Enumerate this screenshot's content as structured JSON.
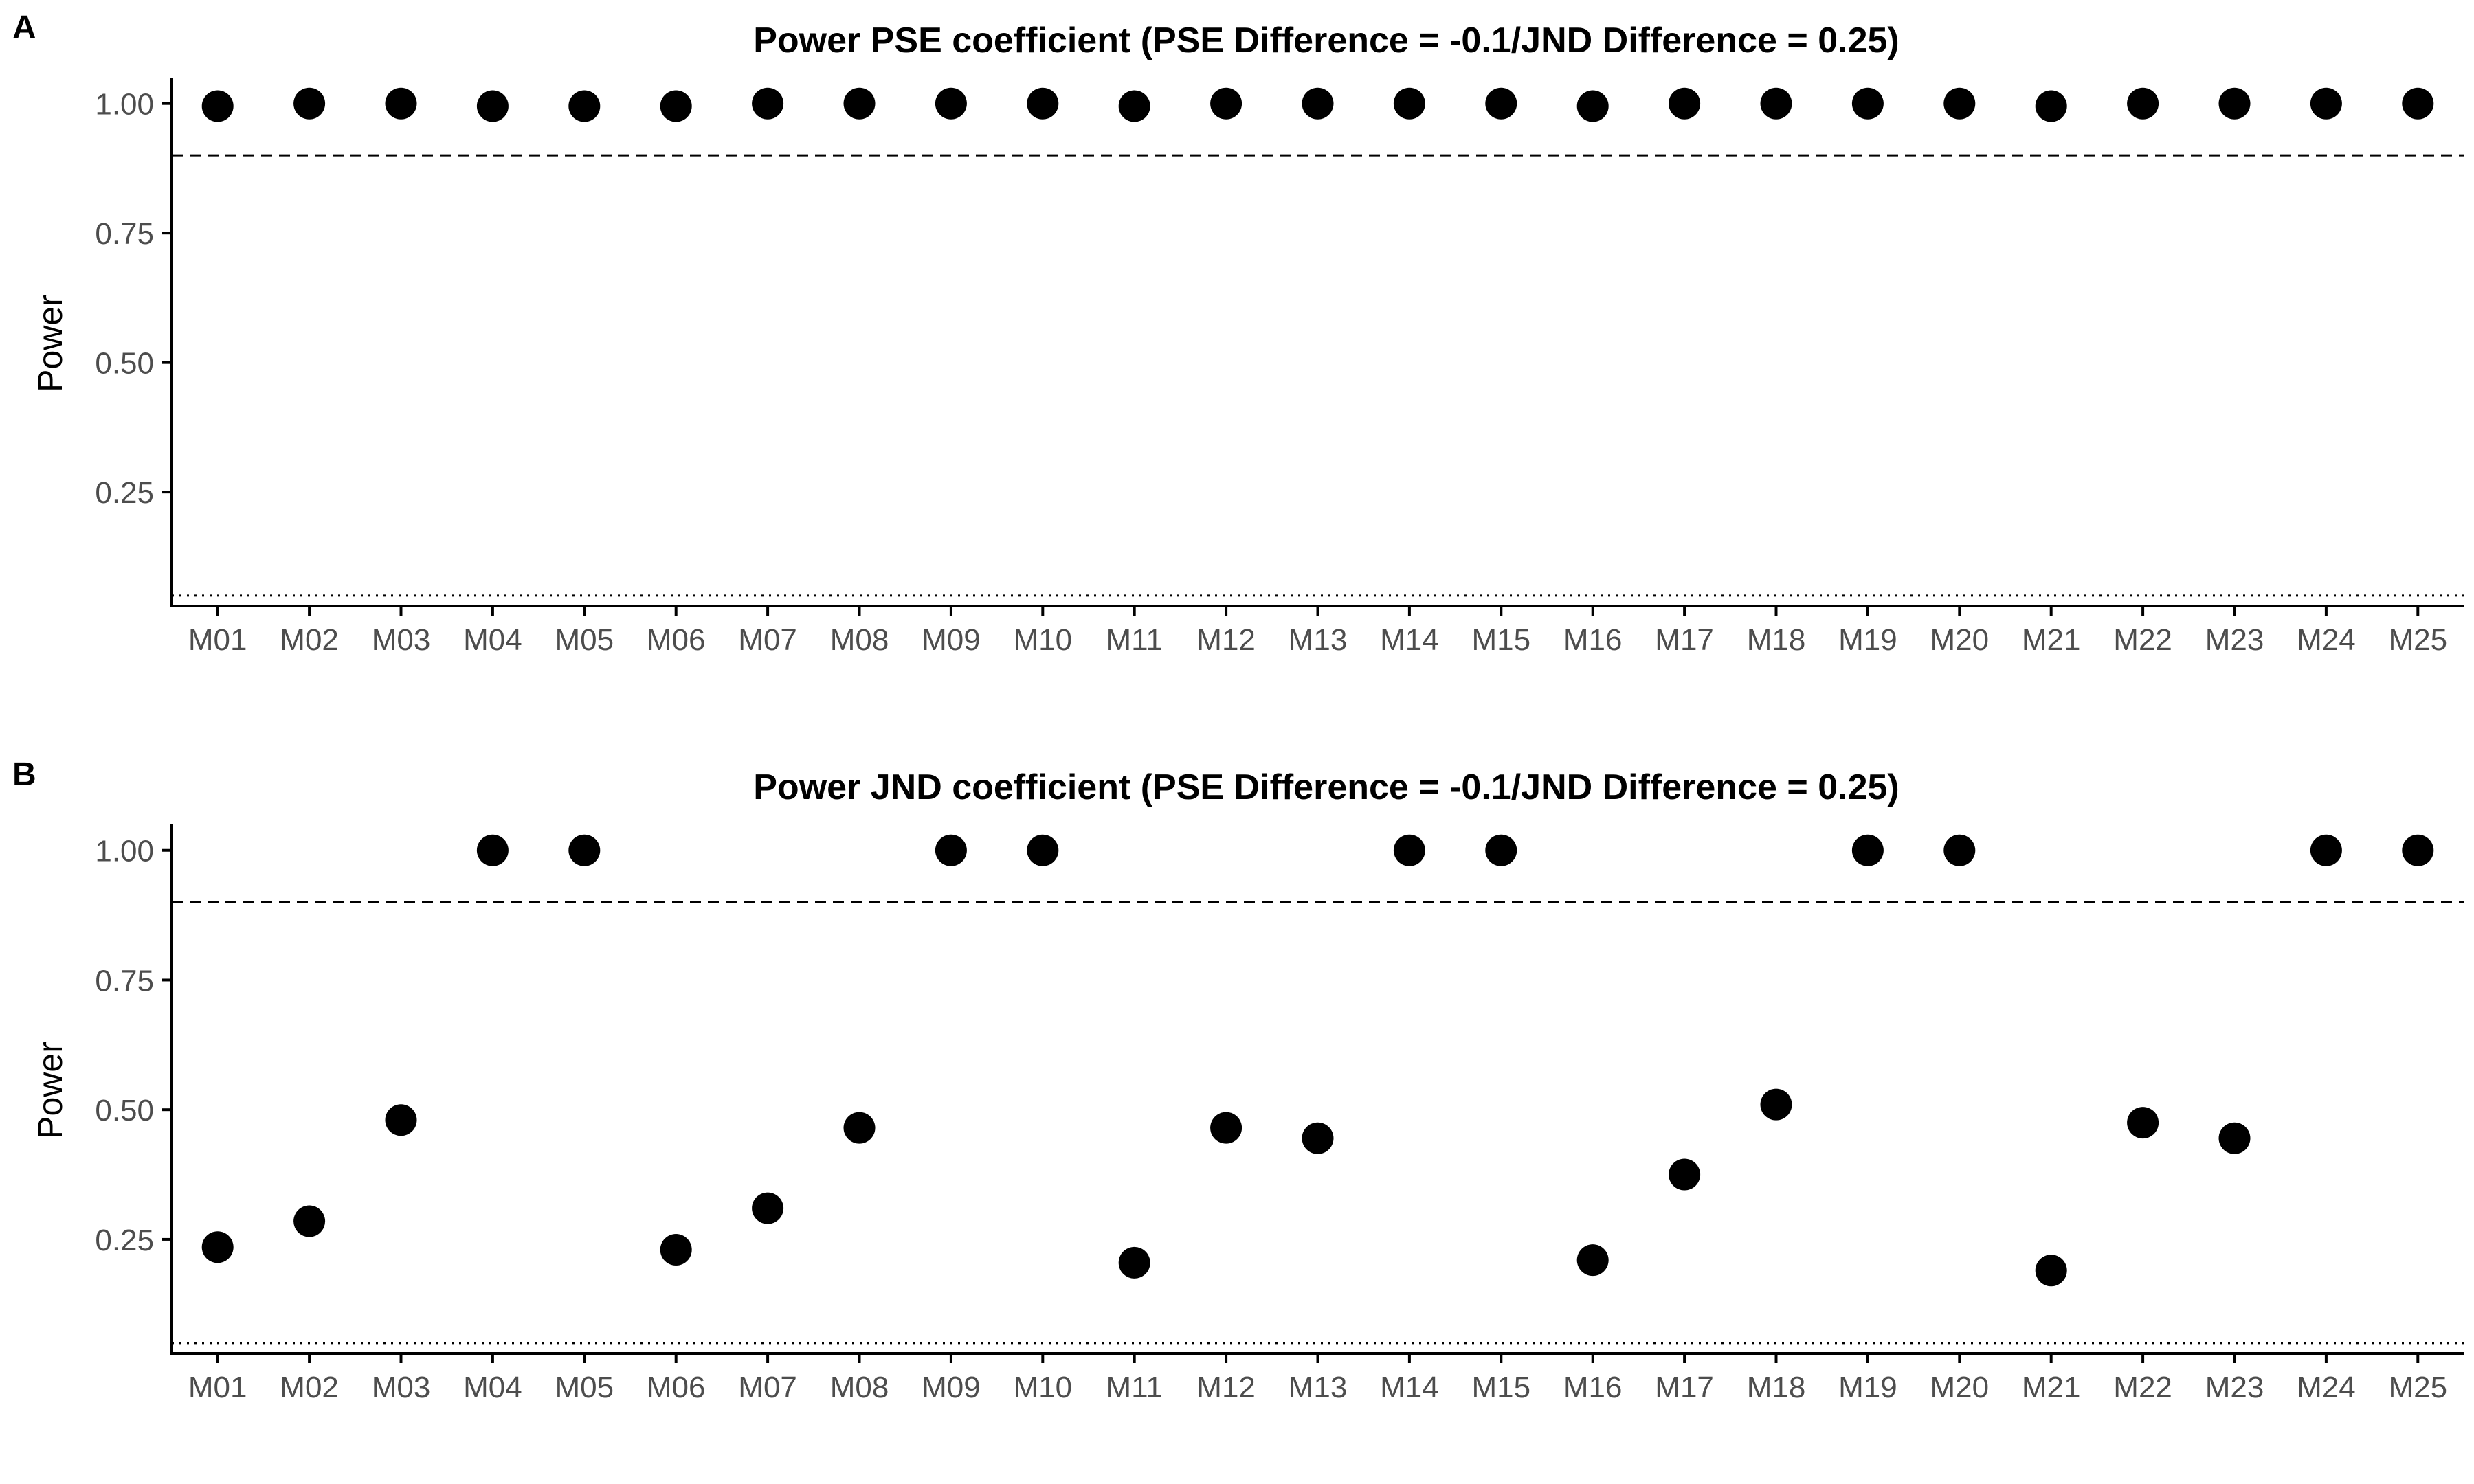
{
  "chart_data": [
    {
      "panel_label": "A",
      "type": "scatter",
      "title": "Power PSE coefficient (PSE Difference = -0.1/JND Difference = 0.25)",
      "xlabel": "",
      "ylabel": "Power",
      "categories": [
        "M01",
        "M02",
        "M03",
        "M04",
        "M05",
        "M06",
        "M07",
        "M08",
        "M09",
        "M10",
        "M11",
        "M12",
        "M13",
        "M14",
        "M15",
        "M16",
        "M17",
        "M18",
        "M19",
        "M20",
        "M21",
        "M22",
        "M23",
        "M24",
        "M25"
      ],
      "values": [
        0.995,
        1.0,
        1.0,
        0.995,
        0.995,
        0.995,
        1.0,
        1.0,
        1.0,
        1.0,
        0.995,
        1.0,
        1.0,
        1.0,
        1.0,
        0.995,
        1.0,
        1.0,
        1.0,
        1.0,
        0.995,
        1.0,
        1.0,
        1.0,
        1.0
      ],
      "yticks": [
        0.25,
        0.5,
        0.75,
        1.0
      ],
      "ytick_labels": [
        "0.25",
        "0.50",
        "0.75",
        "1.00"
      ],
      "ylim": [
        0.03,
        1.05
      ],
      "reference_lines": [
        {
          "y": 0.9,
          "style": "dashed"
        },
        {
          "y": 0.05,
          "style": "dotted"
        }
      ],
      "grid": false,
      "point_color": "#000000"
    },
    {
      "panel_label": "B",
      "type": "scatter",
      "title": "Power JND coefficient (PSE Difference = -0.1/JND Difference = 0.25)",
      "xlabel": "",
      "ylabel": "Power",
      "categories": [
        "M01",
        "M02",
        "M03",
        "M04",
        "M05",
        "M06",
        "M07",
        "M08",
        "M09",
        "M10",
        "M11",
        "M12",
        "M13",
        "M14",
        "M15",
        "M16",
        "M17",
        "M18",
        "M19",
        "M20",
        "M21",
        "M22",
        "M23",
        "M24",
        "M25"
      ],
      "values": [
        0.235,
        0.285,
        0.48,
        1.0,
        1.0,
        0.23,
        0.31,
        0.465,
        1.0,
        1.0,
        0.205,
        0.465,
        0.445,
        1.0,
        1.0,
        0.21,
        0.375,
        0.51,
        1.0,
        1.0,
        0.19,
        0.475,
        0.445,
        1.0,
        1.0
      ],
      "yticks": [
        0.25,
        0.5,
        0.75,
        1.0
      ],
      "ytick_labels": [
        "0.25",
        "0.50",
        "0.75",
        "1.00"
      ],
      "ylim": [
        0.03,
        1.05
      ],
      "reference_lines": [
        {
          "y": 0.9,
          "style": "dashed"
        },
        {
          "y": 0.05,
          "style": "dotted"
        }
      ],
      "grid": false,
      "point_color": "#000000"
    }
  ]
}
